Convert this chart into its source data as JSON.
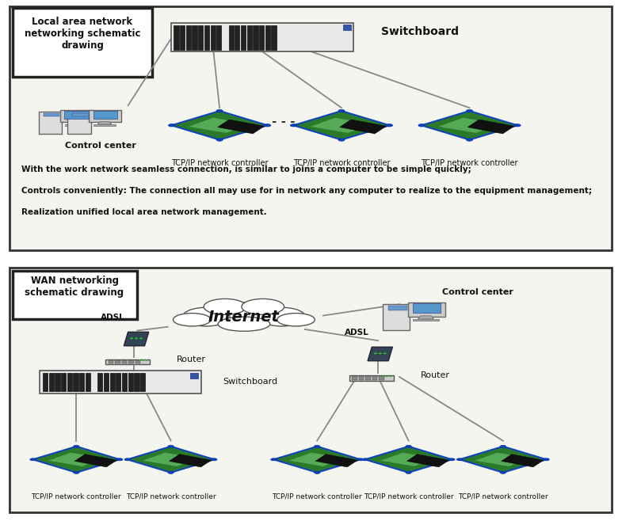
{
  "bg_color": "#ffffff",
  "border_color": "#000000",
  "panel1": {
    "title": "Local area network\nnetworking schematic\ndrawing",
    "switchboard_label": "Switchboard",
    "control_label": "Control center",
    "controller_label": "TCP/IP network controller",
    "description": [
      "With the work network seamless connection, is similar to joins a computer to be simple quickly;",
      "Controls conveniently: The connection all may use for in network any computer to realize to the equipment management;",
      "Realization unified local area network management."
    ]
  },
  "panel2": {
    "title": "WAN networking\nschematic drawing",
    "internet_label": "Internet",
    "control_label": "Control center",
    "adsl_label": "ADSL",
    "router_label": "Router",
    "switchboard_label": "Switchboard",
    "controller_label": "TCP/IP network controller"
  }
}
